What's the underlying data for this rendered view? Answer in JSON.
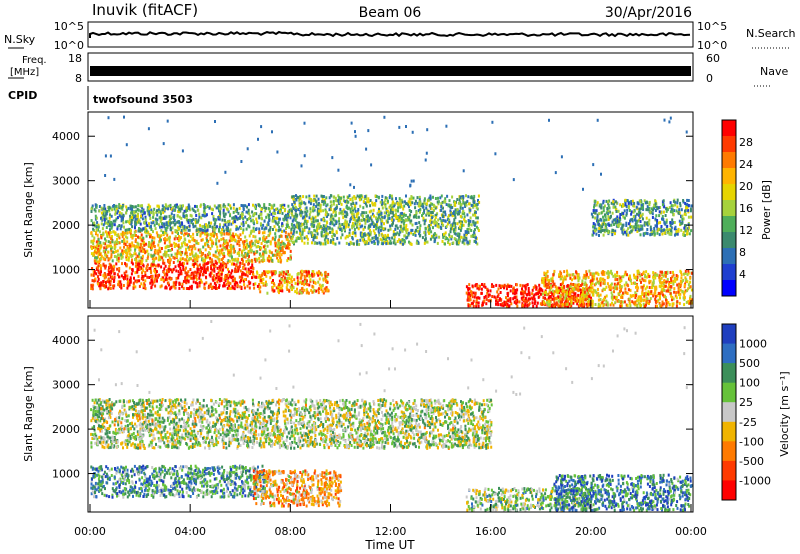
{
  "header": {
    "station": "Inuvik (fitACF)",
    "beam": "Beam 06",
    "date": "30/Apr/2016"
  },
  "top_panels": {
    "nsky_label": "N.Sky",
    "nsky_ticks": [
      "10^5",
      "10^0"
    ],
    "nsearch_label": "N.Search",
    "nsearch_ticks": [
      "10^5",
      "10^0"
    ],
    "freq_label_1": "Freq.",
    "freq_label_2": "[MHz]",
    "freq_ticks": [
      "18",
      "8"
    ],
    "nave_label": "Nave",
    "nave_ticks": [
      "60",
      "0"
    ],
    "cpid_label": "CPID",
    "cpid_value": "twofsound 3503"
  },
  "chart_data": [
    {
      "type": "heatmap",
      "panel": "power",
      "ylabel": "Slant Range [km]",
      "xlabel": "",
      "ylim": [
        180,
        4500
      ],
      "yticks": [
        "1000",
        "2000",
        "3000",
        "4000"
      ],
      "x_ticks": [
        "00:00",
        "04:00",
        "08:00",
        "12:00",
        "16:00",
        "20:00",
        "00:00"
      ],
      "colorbar_label": "Power [dB]",
      "colorbar_ticks": [
        "28",
        "24",
        "20",
        "16",
        "12",
        "8",
        "4"
      ],
      "colors": [
        "#ff0000",
        "#ff3a00",
        "#ff7a00",
        "#ffb400",
        "#e6d400",
        "#a6d23c",
        "#4fae5a",
        "#3b8a6e",
        "#2c6fb5",
        "#1f3fd0",
        "#0000ff"
      ],
      "scatter_regions": [
        {
          "t": [
            0.0,
            6.5
          ],
          "r": [
            600,
            1200
          ],
          "level": 0.95
        },
        {
          "t": [
            6.5,
            9.5
          ],
          "r": [
            500,
            1000
          ],
          "level": 0.75
        },
        {
          "t": [
            0.0,
            8.0
          ],
          "r": [
            1200,
            1900
          ],
          "level": 0.65
        },
        {
          "t": [
            0.0,
            8.0
          ],
          "r": [
            1900,
            2500
          ],
          "level": 0.35
        },
        {
          "t": [
            8.0,
            15.5
          ],
          "r": [
            1600,
            2700
          ],
          "level": 0.4
        },
        {
          "t": [
            15.0,
            20.0
          ],
          "r": [
            200,
            700
          ],
          "level": 1.0
        },
        {
          "t": [
            18.0,
            24.0
          ],
          "r": [
            200,
            1000
          ],
          "level": 0.7
        },
        {
          "t": [
            20.0,
            24.0
          ],
          "r": [
            1800,
            2600
          ],
          "level": 0.35
        }
      ]
    },
    {
      "type": "heatmap",
      "panel": "velocity",
      "ylabel": "Slant Range [km]",
      "xlabel": "Time UT",
      "ylim": [
        180,
        4500
      ],
      "yticks": [
        "1000",
        "2000",
        "3000",
        "4000"
      ],
      "x_ticks": [
        "00:00",
        "04:00",
        "08:00",
        "12:00",
        "16:00",
        "20:00",
        "00:00"
      ],
      "colorbar_label": "Velocity [m s⁻¹]",
      "colorbar_ticks": [
        "1000",
        "500",
        "100",
        "25",
        "-25",
        "-100",
        "-500",
        "-1000"
      ],
      "colors": [
        "#1f3fbf",
        "#2e6ec2",
        "#3c8f5a",
        "#66c23a",
        "#c8c8c8",
        "#f0b400",
        "#ff7a00",
        "#ff3a00",
        "#ff0000"
      ],
      "scatter_regions": [
        {
          "t": [
            0.0,
            7.0
          ],
          "r": [
            500,
            1200
          ],
          "level": 0.75
        },
        {
          "t": [
            6.5,
            10.0
          ],
          "r": [
            300,
            1100
          ],
          "level": 0.35
        },
        {
          "t": [
            0.0,
            16.0
          ],
          "r": [
            1600,
            2700
          ],
          "level": 0.55
        },
        {
          "t": [
            15.0,
            20.0
          ],
          "r": [
            200,
            700
          ],
          "level": 0.6
        },
        {
          "t": [
            18.5,
            24.0
          ],
          "r": [
            200,
            1000
          ],
          "level": 0.8
        }
      ]
    }
  ]
}
